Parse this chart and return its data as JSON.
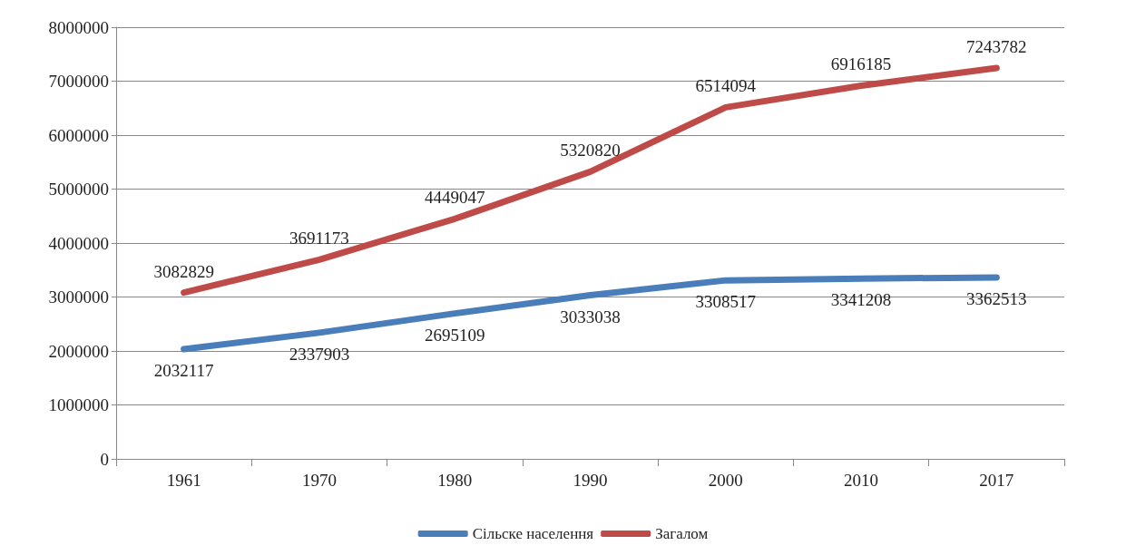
{
  "chart_data": {
    "type": "line",
    "categories": [
      "1961",
      "1970",
      "1980",
      "1990",
      "2000",
      "2010",
      "2017"
    ],
    "series": [
      {
        "name": "Сільске населення",
        "color": "#4a7ebb",
        "values": [
          2032117,
          2337903,
          2695109,
          3033038,
          3308517,
          3341208,
          3362513
        ]
      },
      {
        "name": "Загалом",
        "color": "#be4b48",
        "values": [
          3082829,
          3691173,
          4449047,
          5320820,
          6514094,
          6916185,
          7243782
        ]
      }
    ],
    "ylim": [
      0,
      8000000
    ],
    "yticks": [
      0,
      1000000,
      2000000,
      3000000,
      4000000,
      5000000,
      6000000,
      7000000,
      8000000
    ],
    "grid": "y",
    "legend": "bottom",
    "data_labels": true
  }
}
